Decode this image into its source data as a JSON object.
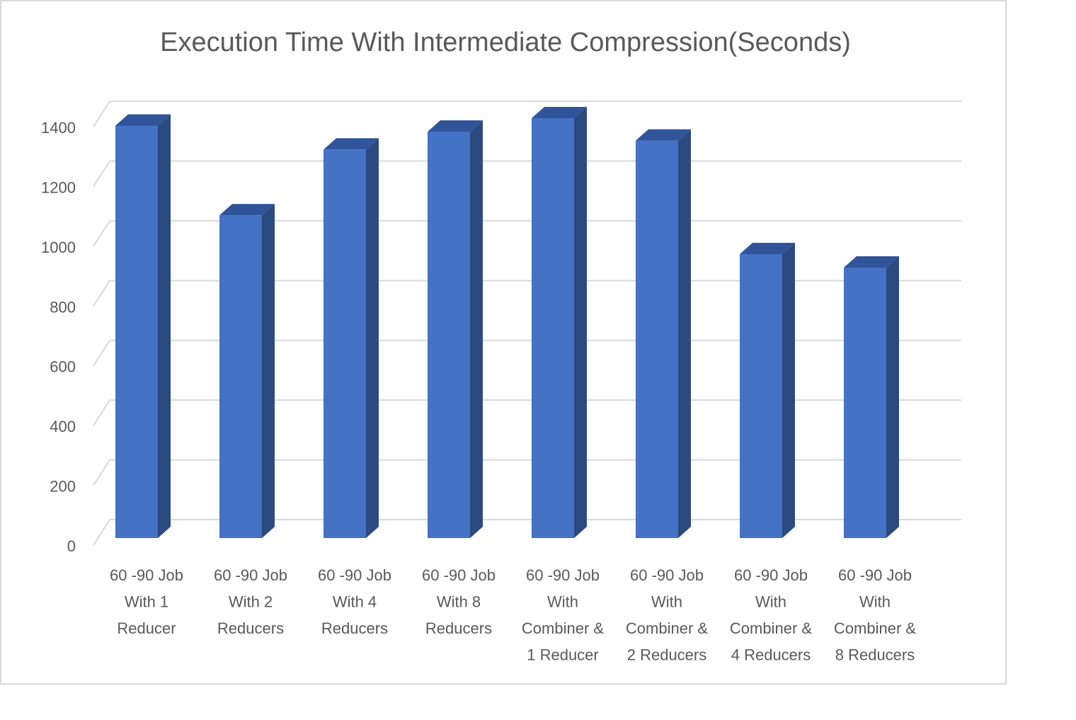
{
  "chart_data": {
    "type": "bar",
    "title": "Execution Time With Intermediate Compression(Seconds)",
    "xlabel": "",
    "ylabel": "",
    "ylim": [
      0,
      1400
    ],
    "yticks": [
      "0",
      "200",
      "400",
      "600",
      "800",
      "1000",
      "1200",
      "1400"
    ],
    "grid": true,
    "legend": "none",
    "bar_color": "#4472c4",
    "bar_side_color": "#2b4a80",
    "bar_top_color": "#30549a",
    "categories": [
      [
        "60 -90 Job",
        "With 1",
        "Reducer"
      ],
      [
        "60 -90 Job",
        "With 2",
        "Reducers"
      ],
      [
        "60 -90 Job",
        "With 4",
        "Reducers"
      ],
      [
        "60 -90 Job",
        "With 8",
        "Reducers"
      ],
      [
        "60 -90 Job",
        "With",
        "Combiner &",
        "1 Reducer"
      ],
      [
        "60 -90 Job",
        "With",
        "Combiner &",
        "2 Reducers"
      ],
      [
        "60 -90 Job",
        "With",
        "Combiner &",
        "4 Reducers"
      ],
      [
        "60 -90 Job",
        "With",
        "Combiner &",
        "8 Reducers"
      ]
    ],
    "values": [
      1380,
      1080,
      1300,
      1360,
      1405,
      1330,
      950,
      905
    ]
  }
}
